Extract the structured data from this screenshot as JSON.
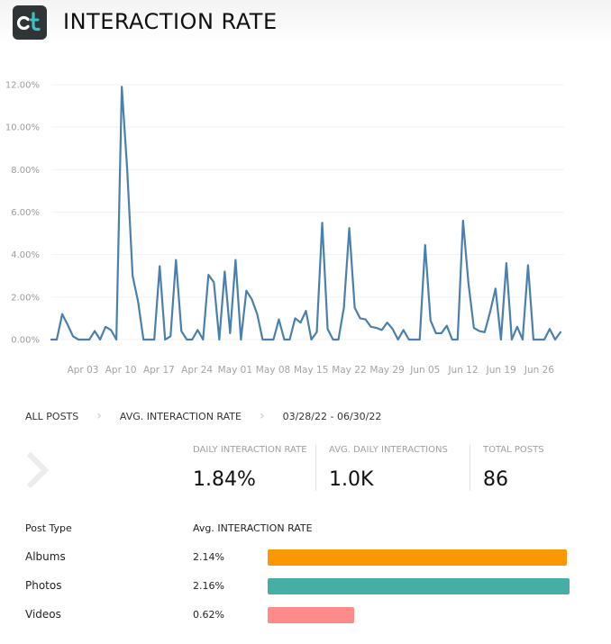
{
  "header": {
    "title": "INTERACTION RATE",
    "logo_text": "ct"
  },
  "chart_data": {
    "type": "line",
    "ylim": [
      0,
      12
    ],
    "y_ticks": [
      "0.00%",
      "2.00%",
      "4.00%",
      "6.00%",
      "8.00%",
      "10.00%",
      "12.00%"
    ],
    "x_ticks": [
      "Apr 03",
      "Apr 10",
      "Apr 17",
      "Apr 24",
      "May 01",
      "May 08",
      "May 15",
      "May 22",
      "May 29",
      "Jun 05",
      "Jun 12",
      "Jun 19",
      "Jun 26"
    ],
    "grid": true,
    "x_start": "03/28/22",
    "x_end": "06/30/22",
    "series": [
      {
        "color": "#4a7fae",
        "values": [
          0,
          0,
          1.2,
          0.7,
          0.15,
          0,
          0,
          0,
          0.4,
          0,
          0.6,
          0.45,
          0,
          11.9,
          8.0,
          3.0,
          1.8,
          0,
          0,
          0,
          3.45,
          0,
          0.15,
          3.75,
          0.4,
          0,
          0,
          0.45,
          0,
          3.05,
          2.7,
          0,
          3.2,
          0.3,
          3.75,
          0,
          2.3,
          1.9,
          1.2,
          0,
          0,
          0,
          0.95,
          0,
          0,
          1.0,
          0.8,
          1.35,
          0,
          0.35,
          5.5,
          0.5,
          0,
          0,
          1.5,
          5.25,
          1.5,
          1.0,
          0.95,
          0.6,
          0.55,
          0.45,
          0.8,
          0.5,
          0,
          0.45,
          0,
          0,
          0,
          4.45,
          0.9,
          0.3,
          0.3,
          0.65,
          0,
          0,
          5.6,
          2.65,
          0.55,
          0.4,
          0.35,
          1.3,
          2.4,
          0,
          3.6,
          0,
          0.6,
          0,
          3.5,
          0,
          0,
          0,
          0.5,
          0,
          0.35
        ]
      }
    ]
  },
  "breadcrumb": {
    "items": [
      "ALL POSTS",
      "AVG. INTERACTION RATE",
      "03/28/22 - 06/30/22"
    ]
  },
  "stats": {
    "daily_rate_label": "DAILY INTERACTION RATE",
    "daily_rate_value": "1.84%",
    "avg_daily_label": "AVG. DAILY INTERACTIONS",
    "avg_daily_value": "1.0K",
    "total_posts_label": "TOTAL POSTS",
    "total_posts_value": "86"
  },
  "post_types": {
    "col_type": "Post Type",
    "col_rate": "Avg. INTERACTION RATE",
    "rows": [
      {
        "label": "Albums",
        "value_text": "2.14%",
        "value": 2.14,
        "color": "#fb9700"
      },
      {
        "label": "Photos",
        "value_text": "2.16%",
        "value": 2.16,
        "color": "#47aea6"
      },
      {
        "label": "Videos",
        "value_text": "0.62%",
        "value": 0.62,
        "color": "#fe8b88"
      }
    ]
  }
}
